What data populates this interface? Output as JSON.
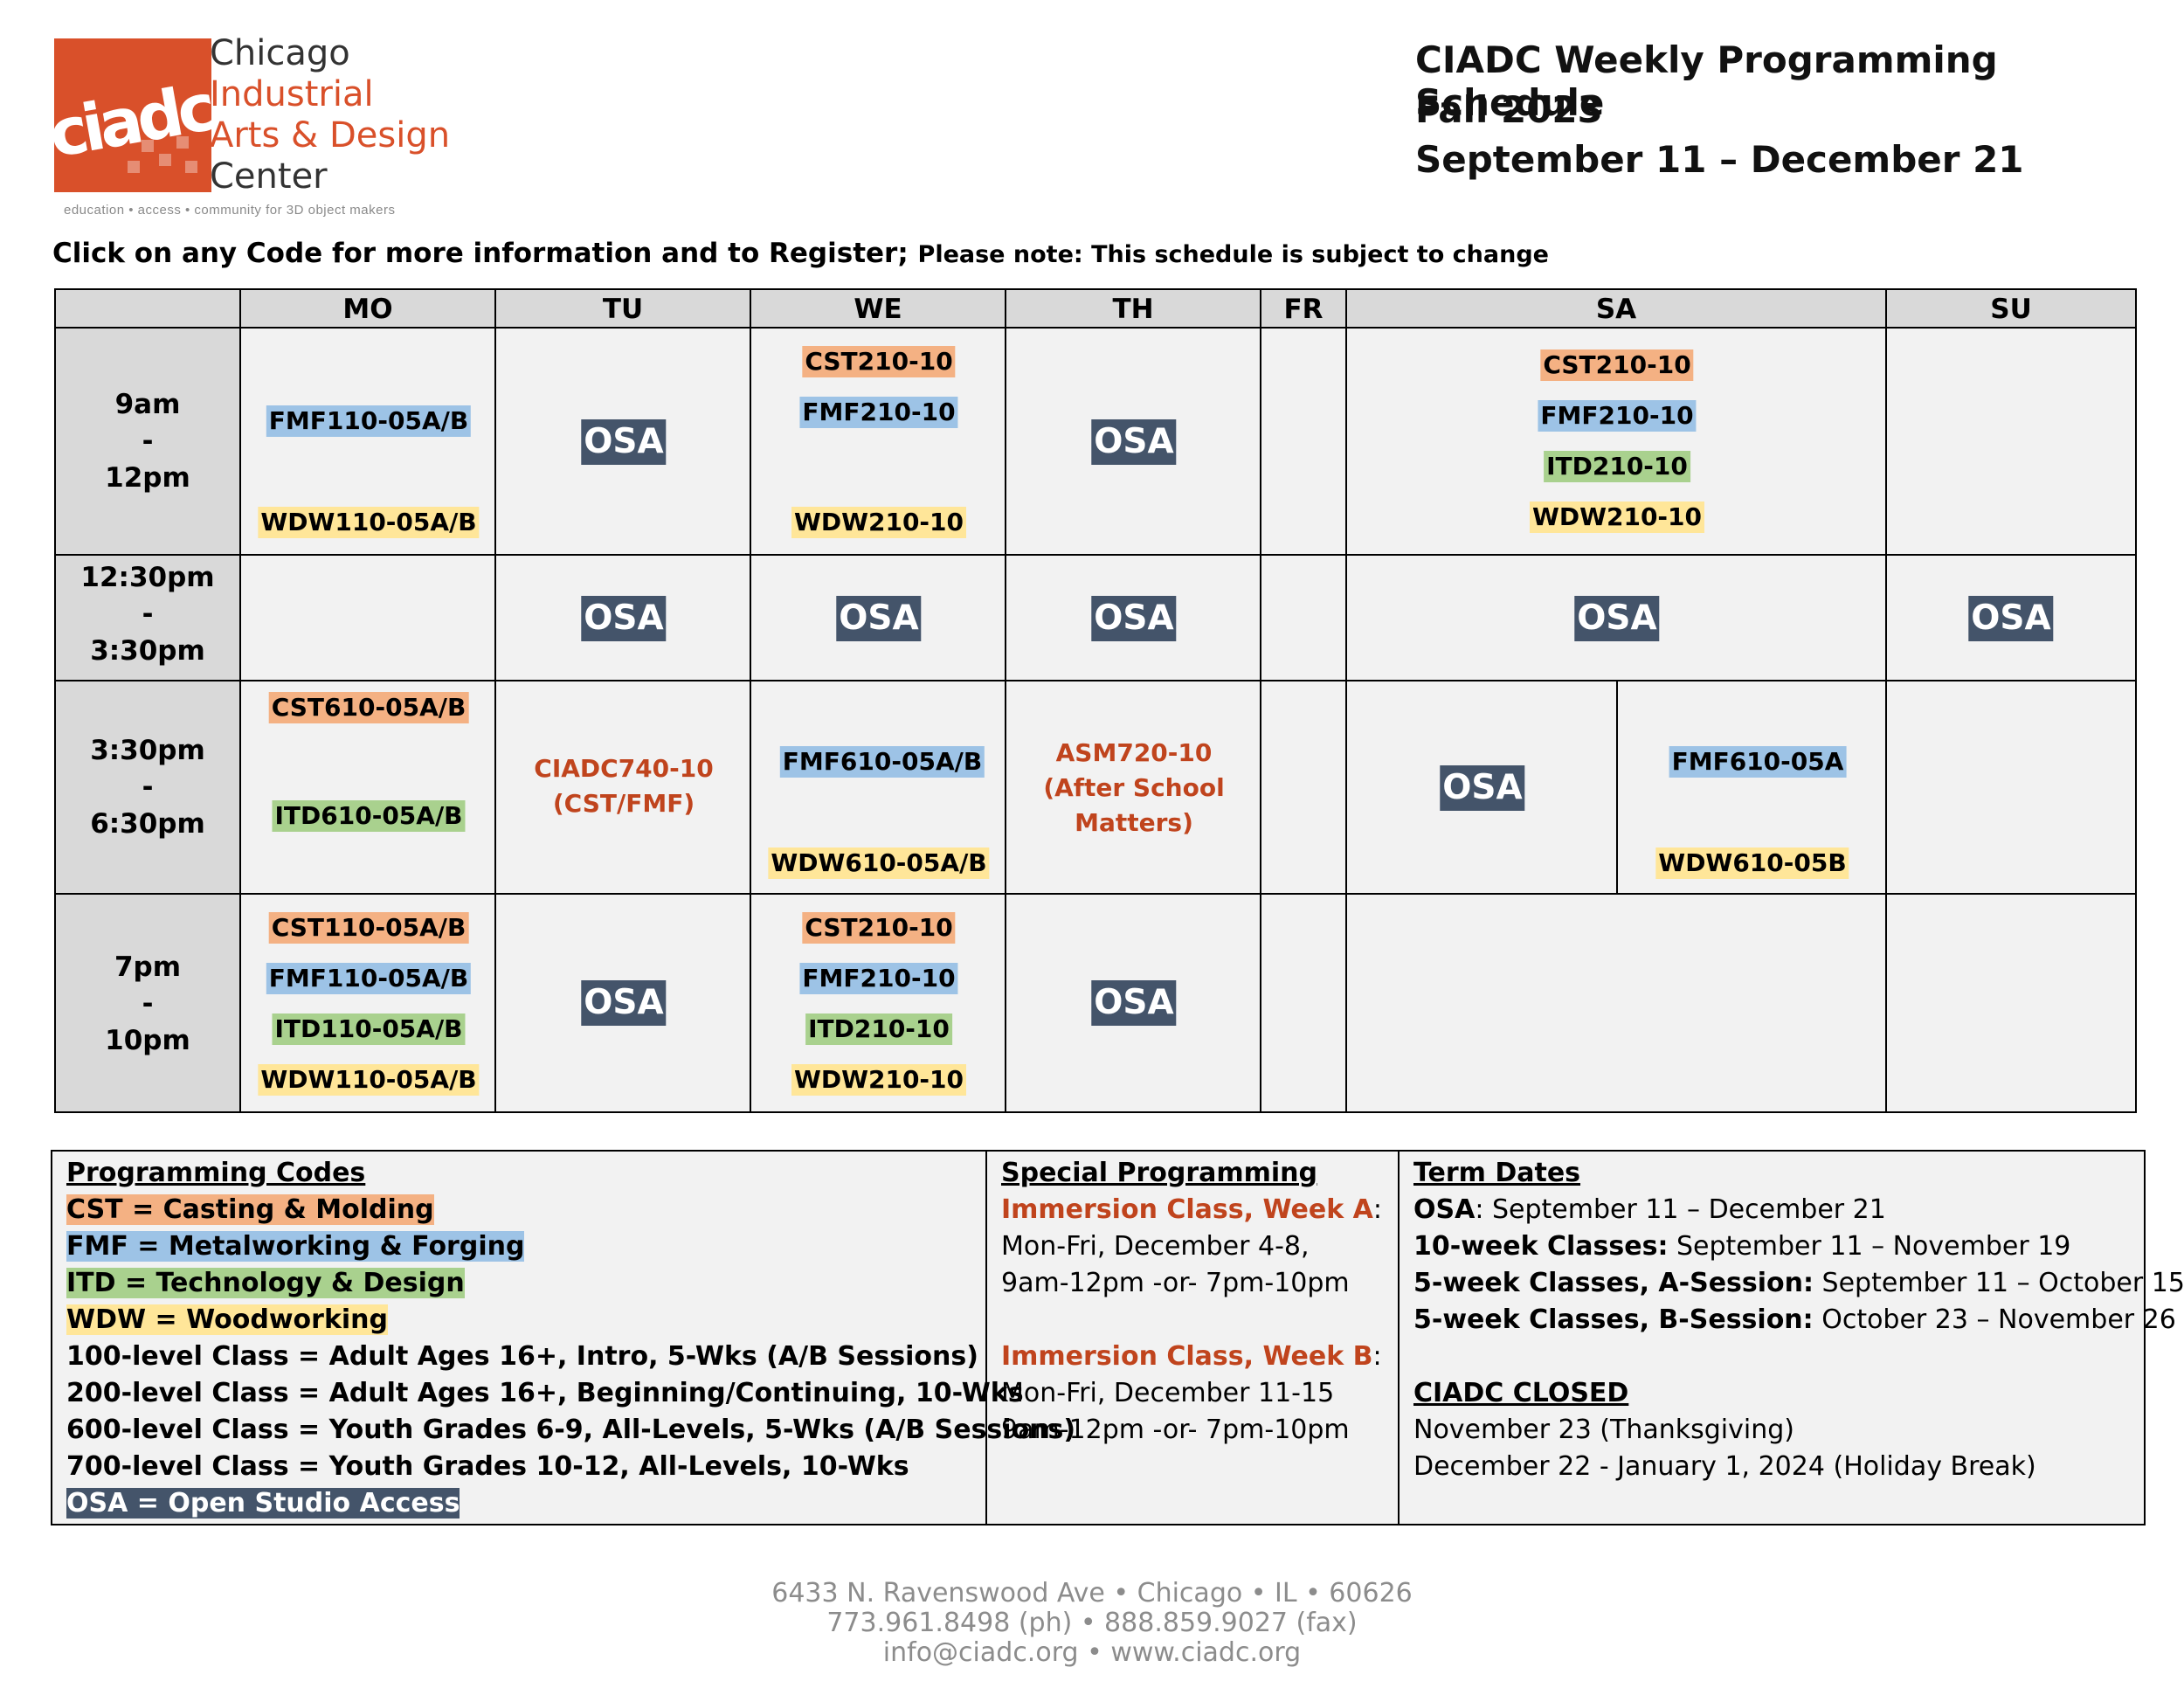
{
  "logo": {
    "word": "ciadc",
    "lines": [
      "Chicago",
      "Industrial",
      "Arts & Design",
      "Center"
    ],
    "tagline": "education • access • community for 3D object makers"
  },
  "header": {
    "title_line1": "CIADC Weekly Programming Schedule",
    "title_line2": "Fall 2023",
    "title_line3": "September 11 – December 21"
  },
  "instructions": {
    "main": "Click on any Code for more information and to Register;",
    "note": "Please note: This schedule is subject to change"
  },
  "schedule": {
    "days": [
      "MO",
      "TU",
      "WE",
      "TH",
      "FR",
      "SA",
      "SU"
    ],
    "times": [
      {
        "start": "9am",
        "sep": "-",
        "end": "12pm"
      },
      {
        "start": "12:30pm",
        "sep": "-",
        "end": "3:30pm"
      },
      {
        "start": "3:30pm",
        "sep": "-",
        "end": "6:30pm"
      },
      {
        "start": "7pm",
        "sep": "-",
        "end": "10pm"
      }
    ],
    "osa": "OSA",
    "row1": {
      "mo": [
        "FMF110-05A/B",
        "WDW110-05A/B"
      ],
      "we": [
        "CST210-10",
        "FMF210-10",
        "WDW210-10"
      ],
      "sa": [
        "CST210-10",
        "FMF210-10",
        "ITD210-10",
        "WDW210-10"
      ]
    },
    "row3": {
      "mo": [
        "CST610-05A/B",
        "ITD610-05A/B"
      ],
      "tu": [
        "CIADC740-10",
        "(CST/FMF)"
      ],
      "we": [
        "FMF610-05A/B",
        "WDW610-05A/B"
      ],
      "th": [
        "ASM720-10",
        "(After School",
        "Matters)"
      ],
      "sa_right": [
        "FMF610-05A",
        "WDW610-05B"
      ]
    },
    "row4": {
      "mo": [
        "CST110-05A/B",
        "FMF110-05A/B",
        "ITD110-05A/B",
        "WDW110-05A/B"
      ],
      "we": [
        "CST210-10",
        "FMF210-10",
        "ITD210-10",
        "WDW210-10"
      ]
    }
  },
  "legend": {
    "codes": {
      "heading": "Programming Codes",
      "cst": "CST = Casting & Molding",
      "fmf": "FMF = Metalworking & Forging",
      "itd": "ITD = Technology & Design",
      "wdw": "WDW = Woodworking",
      "l100": "100-level Class = Adult Ages 16+, Intro, 5-Wks (A/B Sessions)",
      "l200": "200-level Class = Adult Ages 16+, Beginning/Continuing, 10-Wks",
      "l600": "600-level Class = Youth Grades 6-9, All-Levels, 5-Wks (A/B Sessions)",
      "l700": "700-level Class = Youth Grades 10-12, All-Levels, 10-Wks",
      "osa": "OSA = Open Studio Access"
    },
    "special": {
      "heading": "Special Programming",
      "a_title": "Immersion Class, Week A",
      "colon": ":",
      "a_dates": "Mon-Fri, December 4-8,",
      "a_times": "9am-12pm -or- 7pm-10pm",
      "b_title": "Immersion Class, Week B",
      "b_dates": "Mon-Fri, December 11-15",
      "b_times": "9am-12pm -or- 7pm-10pm"
    },
    "terms": {
      "heading": "Term Dates",
      "osa_label": "OSA",
      "osa_value": ": September 11 – December 21",
      "ten_label": "10-week Classes:",
      "ten_value": " September 11 – November 19",
      "a_label": "5-week Classes, A-Session:",
      "a_value": " September 11 – October 15",
      "b_label": "5-week Classes, B-Session:",
      "b_value": " October 23 – November 26",
      "closed_heading": "CIADC CLOSED",
      "closed_1": "November 23 (Thanksgiving)",
      "closed_2": "December 22 - January 1, 2024 (Holiday Break)"
    }
  },
  "footer": {
    "address": "6433 N. Ravenswood Ave • Chicago • IL • 60626",
    "phone": "773.961.8498 (ph) • 888.859.9027 (fax)",
    "web": "info@ciadc.org • www.ciadc.org"
  },
  "colors": {
    "cst": "#f4b183",
    "fmf": "#9dc3e6",
    "itd": "#a9d18e",
    "wdw": "#ffe699",
    "osa": "#44546a",
    "accent_orange": "#c0441d",
    "logo_orange": "#d9502a"
  }
}
